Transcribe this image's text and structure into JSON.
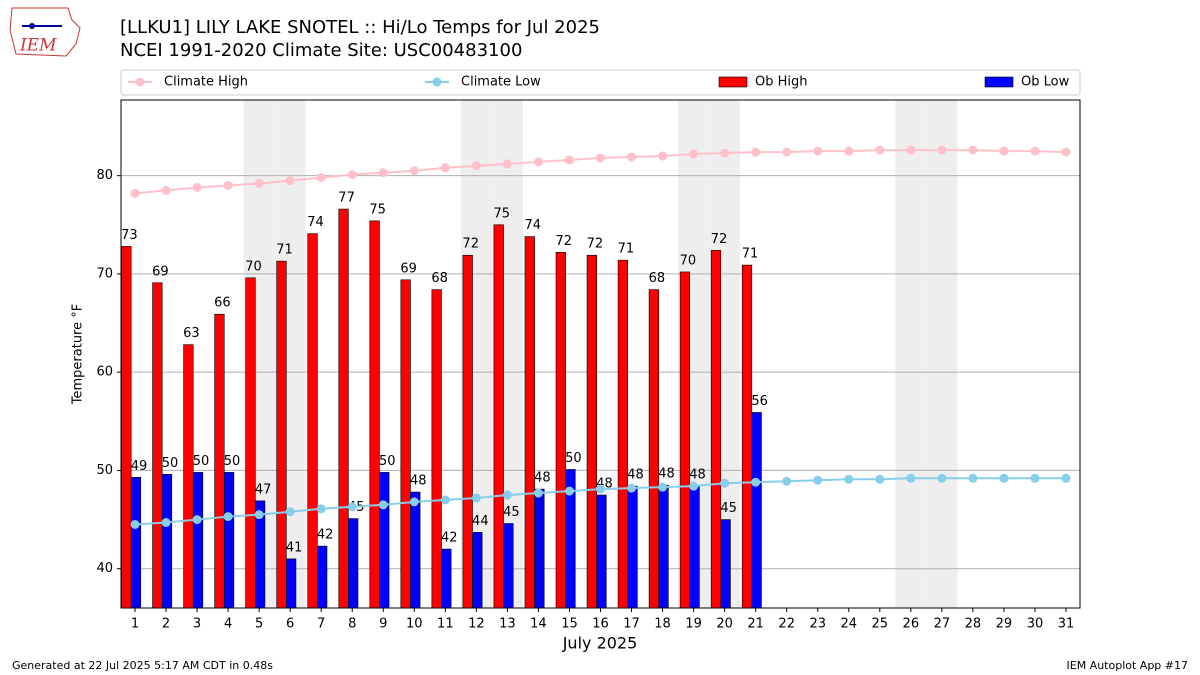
{
  "chart_data": {
    "type": "bar",
    "title": "[LLKU1] LILY LAKE SNOTEL :: Hi/Lo Temps for Jul 2025",
    "subtitle": "NCEI 1991-2020 Climate Site: USC00483100",
    "y_label": "Temperature °F",
    "x_label": "July 2025",
    "footer_left": "Generated at 22 Jul 2025 5:17 AM CDT in 0.48s",
    "footer_right": "IEM Autoplot App #17",
    "logo_text": "IEM",
    "categories": [
      1,
      2,
      3,
      4,
      5,
      6,
      7,
      8,
      9,
      10,
      11,
      12,
      13,
      14,
      15,
      16,
      17,
      18,
      19,
      20,
      21,
      22,
      23,
      24,
      25,
      26,
      27,
      28,
      29,
      30,
      31
    ],
    "shaded_categories": [
      5,
      6,
      12,
      13,
      19,
      20,
      26,
      27
    ],
    "ylim": [
      36,
      87.7
    ],
    "yticks": [
      40,
      50,
      60,
      70,
      80
    ],
    "grid": true,
    "series": [
      {
        "name": "Climate High",
        "kind": "line",
        "color": "#ffc0cb",
        "values": [
          78.2,
          78.5,
          78.8,
          79.0,
          79.2,
          79.5,
          79.8,
          80.1,
          80.3,
          80.5,
          80.8,
          81.0,
          81.2,
          81.4,
          81.6,
          81.8,
          81.9,
          82.0,
          82.2,
          82.3,
          82.4,
          82.4,
          82.5,
          82.5,
          82.6,
          82.6,
          82.6,
          82.6,
          82.5,
          82.5,
          82.4
        ]
      },
      {
        "name": "Climate Low",
        "kind": "line",
        "color": "#87ceeb",
        "values": [
          44.5,
          44.7,
          45.0,
          45.3,
          45.5,
          45.8,
          46.1,
          46.3,
          46.5,
          46.8,
          47.0,
          47.2,
          47.5,
          47.7,
          47.9,
          48.1,
          48.2,
          48.3,
          48.4,
          48.7,
          48.8,
          48.9,
          49.0,
          49.1,
          49.1,
          49.2,
          49.2,
          49.2,
          49.2,
          49.2,
          49.2
        ]
      },
      {
        "name": "Ob High",
        "kind": "bar",
        "color": "#ff0000",
        "values": [
          72.8,
          69.1,
          62.8,
          65.9,
          69.6,
          71.3,
          74.1,
          76.6,
          75.4,
          69.4,
          68.4,
          71.9,
          75.0,
          73.8,
          72.2,
          71.9,
          71.4,
          68.4,
          70.2,
          72.4,
          70.9,
          null,
          null,
          null,
          null,
          null,
          null,
          null,
          null,
          null,
          null
        ],
        "value_labels": [
          "73",
          "69",
          "63",
          "66",
          "70",
          "71",
          "74",
          "77",
          "75",
          "69",
          "68",
          "72",
          "75",
          "74",
          "72",
          "72",
          "71",
          "68",
          "70",
          "72",
          "71",
          null,
          null,
          null,
          null,
          null,
          null,
          null,
          null,
          null,
          null
        ]
      },
      {
        "name": "Ob Low",
        "kind": "bar",
        "color": "#0000ff",
        "values": [
          49.3,
          49.6,
          49.8,
          49.8,
          46.9,
          41.0,
          42.3,
          45.1,
          49.8,
          47.8,
          42.0,
          43.7,
          44.6,
          48.1,
          50.1,
          47.5,
          48.4,
          48.5,
          48.4,
          45.0,
          55.9,
          null,
          null,
          null,
          null,
          null,
          null,
          null,
          null,
          null,
          null
        ],
        "value_labels": [
          "49",
          "50",
          "50",
          "50",
          "47",
          "41",
          "42",
          "45",
          "50",
          "48",
          "42",
          "44",
          "45",
          "48",
          "50",
          "48",
          "48",
          "48",
          "48",
          "45",
          "56",
          null,
          null,
          null,
          null,
          null,
          null,
          null,
          null,
          null,
          null
        ]
      }
    ]
  }
}
